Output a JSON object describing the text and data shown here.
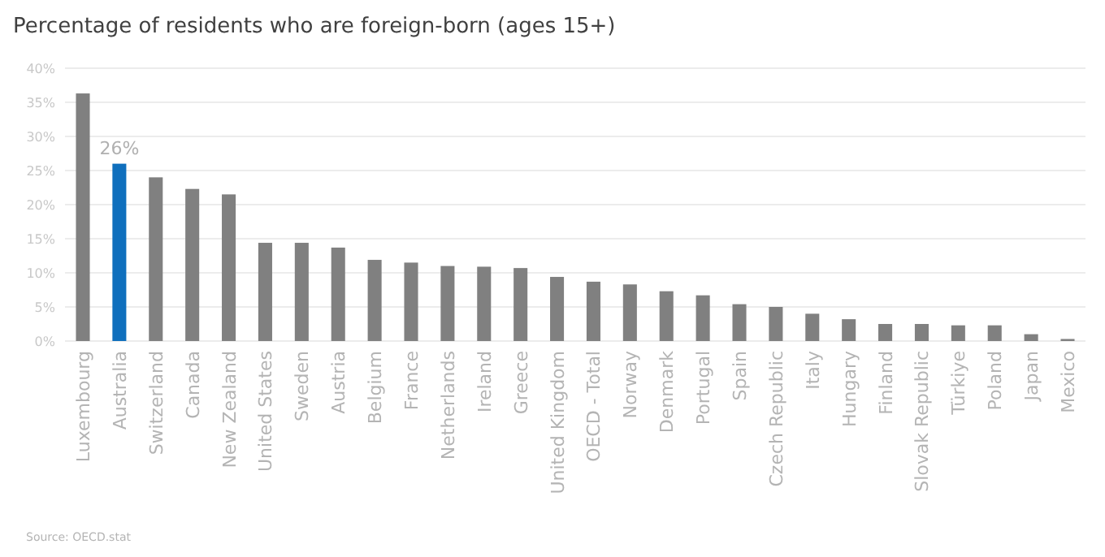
{
  "chart_data": {
    "type": "bar",
    "title": "Percentage of residents who are foreign-born (ages 15+)",
    "categories": [
      "Luxembourg",
      "Australia",
      "Switzerland",
      "Canada",
      "New Zealand",
      "United States",
      "Sweden",
      "Austria",
      "Belgium",
      "France",
      "Netherlands",
      "Ireland",
      "Greece",
      "United Kingdom",
      "OECD - Total",
      "Norway",
      "Denmark",
      "Portugal",
      "Spain",
      "Czech Republic",
      "Italy",
      "Hungary",
      "Finland",
      "Slovak Republic",
      "Türkiye",
      "Poland",
      "Japan",
      "Mexico"
    ],
    "values": [
      36.3,
      26,
      24.0,
      22.3,
      21.5,
      14.4,
      14.4,
      13.7,
      11.9,
      11.5,
      11.0,
      10.9,
      10.7,
      9.4,
      8.7,
      8.3,
      7.3,
      6.7,
      5.4,
      5.0,
      4.0,
      3.2,
      2.5,
      2.5,
      2.3,
      2.3,
      1.0,
      0.3
    ],
    "colors": [
      "#808080",
      "#0f6fbd",
      "#808080",
      "#808080",
      "#808080",
      "#808080",
      "#808080",
      "#808080",
      "#808080",
      "#808080",
      "#808080",
      "#808080",
      "#808080",
      "#808080",
      "#808080",
      "#808080",
      "#808080",
      "#808080",
      "#808080",
      "#808080",
      "#808080",
      "#808080",
      "#808080",
      "#808080",
      "#808080",
      "#808080",
      "#808080",
      "#808080"
    ],
    "value_labels": [
      null,
      "26%",
      null,
      null,
      null,
      null,
      null,
      null,
      null,
      null,
      null,
      null,
      null,
      null,
      null,
      null,
      null,
      null,
      null,
      null,
      null,
      null,
      null,
      null,
      null,
      null,
      null,
      null
    ],
    "ylim": [
      0,
      40
    ],
    "yticks": [
      {
        "value": 0,
        "label": "0%"
      },
      {
        "value": 5,
        "label": "5%"
      },
      {
        "value": 10,
        "label": "10%"
      },
      {
        "value": 15,
        "label": "15%"
      },
      {
        "value": 20,
        "label": "20%"
      },
      {
        "value": 25,
        "label": "25%"
      },
      {
        "value": 30,
        "label": "30%"
      },
      {
        "value": 35,
        "label": "35%"
      },
      {
        "value": 40,
        "label": "40%"
      }
    ],
    "grid": "y",
    "annotations": [
      "Source: OECD.stat"
    ]
  }
}
